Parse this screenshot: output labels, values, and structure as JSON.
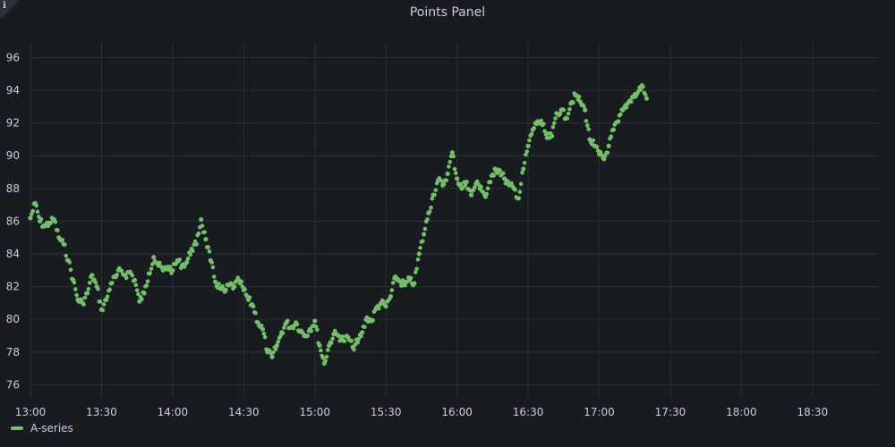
{
  "panel": {
    "title": "Points Panel",
    "info_icon": "info-icon"
  },
  "colors": {
    "background": "#181b1f",
    "grid": "#2c2f36",
    "series": "#73bf69",
    "text": "#ccccdc"
  },
  "chart_data": {
    "type": "scatter",
    "title": "Points Panel",
    "xlabel": "",
    "ylabel": "",
    "x_ticks": [
      "13:00",
      "13:30",
      "14:00",
      "14:30",
      "15:00",
      "15:30",
      "16:00",
      "16:30",
      "17:00",
      "17:30",
      "18:00",
      "18:30"
    ],
    "y_ticks": [
      76,
      78,
      80,
      82,
      84,
      86,
      88,
      90,
      92,
      94,
      96
    ],
    "xlim": [
      "13:00",
      "18:58"
    ],
    "ylim": [
      75.2,
      96.9
    ],
    "grid": true,
    "legend": "bottom-left",
    "series": [
      {
        "name": "A-series",
        "color": "#73bf69",
        "points": [
          [
            "13:00",
            86.2
          ],
          [
            "13:02",
            87.1
          ],
          [
            "13:04",
            86.0
          ],
          [
            "13:06",
            85.7
          ],
          [
            "13:08",
            85.9
          ],
          [
            "13:10",
            86.1
          ],
          [
            "13:12",
            85.0
          ],
          [
            "13:14",
            84.6
          ],
          [
            "13:16",
            83.6
          ],
          [
            "13:18",
            82.4
          ],
          [
            "13:20",
            81.2
          ],
          [
            "13:22",
            81.0
          ],
          [
            "13:24",
            81.6
          ],
          [
            "13:26",
            82.7
          ],
          [
            "13:28",
            82.0
          ],
          [
            "13:30",
            80.6
          ],
          [
            "13:32",
            81.2
          ],
          [
            "13:34",
            82.2
          ],
          [
            "13:36",
            82.6
          ],
          [
            "13:38",
            83.0
          ],
          [
            "13:40",
            82.7
          ],
          [
            "13:42",
            82.9
          ],
          [
            "13:44",
            82.4
          ],
          [
            "13:46",
            81.1
          ],
          [
            "13:48",
            81.6
          ],
          [
            "13:50",
            82.8
          ],
          [
            "13:52",
            83.8
          ],
          [
            "13:54",
            83.3
          ],
          [
            "13:56",
            83.0
          ],
          [
            "13:58",
            83.2
          ],
          [
            "14:00",
            83.0
          ],
          [
            "14:02",
            83.6
          ],
          [
            "14:04",
            83.3
          ],
          [
            "14:06",
            83.5
          ],
          [
            "14:08",
            84.3
          ],
          [
            "14:10",
            84.6
          ],
          [
            "14:12",
            86.1
          ],
          [
            "14:14",
            84.9
          ],
          [
            "14:16",
            83.6
          ],
          [
            "14:18",
            82.3
          ],
          [
            "14:20",
            81.9
          ],
          [
            "14:22",
            81.7
          ],
          [
            "14:24",
            82.1
          ],
          [
            "14:26",
            82.0
          ],
          [
            "14:28",
            82.4
          ],
          [
            "14:30",
            81.8
          ],
          [
            "14:32",
            81.2
          ],
          [
            "14:34",
            80.8
          ],
          [
            "14:36",
            79.8
          ],
          [
            "14:38",
            79.4
          ],
          [
            "14:40",
            78.0
          ],
          [
            "14:42",
            77.7
          ],
          [
            "14:44",
            78.4
          ],
          [
            "14:46",
            79.2
          ],
          [
            "14:48",
            79.8
          ],
          [
            "14:50",
            79.5
          ],
          [
            "14:52",
            79.8
          ],
          [
            "14:54",
            79.3
          ],
          [
            "14:56",
            79.0
          ],
          [
            "14:58",
            79.4
          ],
          [
            "15:00",
            79.9
          ],
          [
            "15:02",
            78.4
          ],
          [
            "15:04",
            77.3
          ],
          [
            "15:06",
            78.4
          ],
          [
            "15:08",
            79.1
          ],
          [
            "15:10",
            79.0
          ],
          [
            "15:12",
            78.7
          ],
          [
            "15:14",
            78.9
          ],
          [
            "15:16",
            78.3
          ],
          [
            "15:18",
            78.6
          ],
          [
            "15:20",
            79.2
          ],
          [
            "15:22",
            80.1
          ],
          [
            "15:24",
            79.9
          ],
          [
            "15:26",
            80.7
          ],
          [
            "15:28",
            81.0
          ],
          [
            "15:30",
            80.8
          ],
          [
            "15:32",
            81.4
          ],
          [
            "15:34",
            82.6
          ],
          [
            "15:36",
            82.3
          ],
          [
            "15:38",
            82.1
          ],
          [
            "15:40",
            82.4
          ],
          [
            "15:42",
            82.2
          ],
          [
            "15:44",
            84.0
          ],
          [
            "15:46",
            85.2
          ],
          [
            "15:48",
            86.5
          ],
          [
            "15:50",
            87.6
          ],
          [
            "15:52",
            88.5
          ],
          [
            "15:54",
            88.2
          ],
          [
            "15:56",
            88.9
          ],
          [
            "15:58",
            90.2
          ],
          [
            "16:00",
            88.6
          ],
          [
            "16:02",
            88.0
          ],
          [
            "16:04",
            88.4
          ],
          [
            "16:06",
            87.6
          ],
          [
            "16:08",
            88.3
          ],
          [
            "16:10",
            88.1
          ],
          [
            "16:12",
            87.5
          ],
          [
            "16:14",
            88.4
          ],
          [
            "16:16",
            89.2
          ],
          [
            "16:18",
            89.1
          ],
          [
            "16:20",
            88.6
          ],
          [
            "16:22",
            88.2
          ],
          [
            "16:24",
            88.0
          ],
          [
            "16:26",
            87.4
          ],
          [
            "16:28",
            89.2
          ],
          [
            "16:30",
            90.6
          ],
          [
            "16:32",
            91.6
          ],
          [
            "16:34",
            92.1
          ],
          [
            "16:36",
            91.9
          ],
          [
            "16:38",
            91.1
          ],
          [
            "16:40",
            91.2
          ],
          [
            "16:42",
            92.6
          ],
          [
            "16:44",
            92.8
          ],
          [
            "16:46",
            92.3
          ],
          [
            "16:48",
            93.2
          ],
          [
            "16:50",
            93.7
          ],
          [
            "16:52",
            93.3
          ],
          [
            "16:54",
            92.8
          ],
          [
            "16:56",
            91.0
          ],
          [
            "16:58",
            90.6
          ],
          [
            "17:00",
            90.1
          ],
          [
            "17:02",
            89.8
          ],
          [
            "17:04",
            90.6
          ],
          [
            "17:06",
            91.6
          ],
          [
            "17:08",
            92.1
          ],
          [
            "17:10",
            92.8
          ],
          [
            "17:12",
            93.2
          ],
          [
            "17:14",
            93.6
          ],
          [
            "17:16",
            93.8
          ],
          [
            "17:18",
            94.3
          ],
          [
            "17:20",
            93.5
          ]
        ]
      }
    ]
  }
}
